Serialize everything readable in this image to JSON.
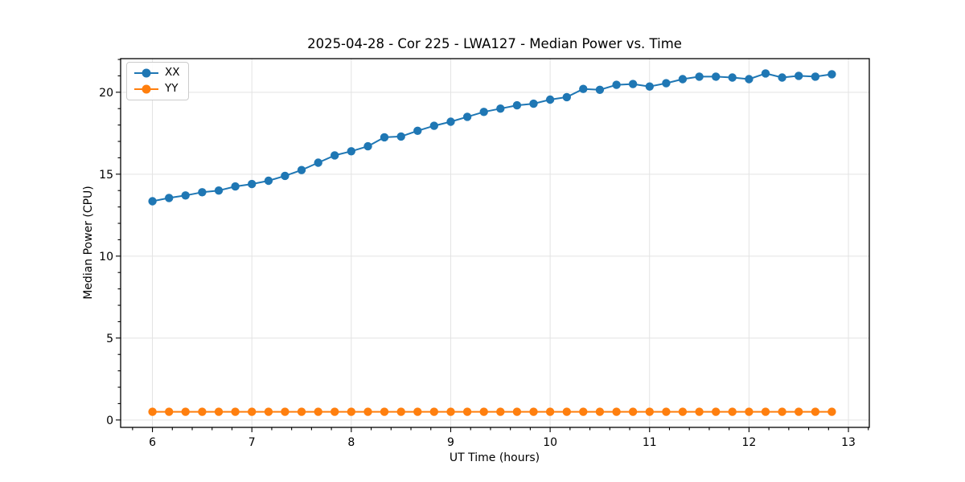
{
  "chart_data": {
    "type": "line",
    "title": "2025-04-28 - Cor 225 - LWA127 - Median Power vs. Time",
    "xlabel": "UT Time (hours)",
    "ylabel": "Median Power (CPU)",
    "xlim": [
      5.68,
      13.21
    ],
    "ylim": [
      -0.45,
      22.05
    ],
    "xticks": [
      6,
      7,
      8,
      9,
      10,
      11,
      12,
      13
    ],
    "yticks": [
      0,
      5,
      10,
      15,
      20
    ],
    "x_minor_step": 0.2,
    "y_minor_step": 1,
    "grid": true,
    "grid_color": "#e3e3e3",
    "spine_color": "#000000",
    "legend_position": "upper left",
    "x": [
      6.0,
      6.167,
      6.333,
      6.5,
      6.667,
      6.833,
      7.0,
      7.167,
      7.333,
      7.5,
      7.667,
      7.833,
      8.0,
      8.167,
      8.333,
      8.5,
      8.667,
      8.833,
      9.0,
      9.167,
      9.333,
      9.5,
      9.667,
      9.833,
      10.0,
      10.167,
      10.333,
      10.5,
      10.667,
      10.833,
      11.0,
      11.167,
      11.333,
      11.5,
      11.667,
      11.833,
      12.0,
      12.167,
      12.333,
      12.5,
      12.667,
      12.833
    ],
    "series": [
      {
        "name": "XX",
        "color": "#1f77b4",
        "values": [
          13.35,
          13.55,
          13.7,
          13.9,
          14.0,
          14.25,
          14.4,
          14.6,
          14.9,
          15.25,
          15.7,
          16.15,
          16.4,
          16.7,
          17.25,
          17.3,
          17.65,
          17.95,
          18.2,
          18.5,
          18.8,
          19.0,
          19.2,
          19.3,
          19.55,
          19.7,
          20.2,
          20.15,
          20.45,
          20.5,
          20.35,
          20.55,
          20.8,
          20.95,
          20.95,
          20.9,
          20.8,
          21.15,
          20.9,
          21.0,
          20.95,
          21.1
        ]
      },
      {
        "name": "YY",
        "color": "#ff7f0e",
        "values": [
          0.5,
          0.5,
          0.5,
          0.5,
          0.5,
          0.5,
          0.5,
          0.5,
          0.5,
          0.5,
          0.5,
          0.5,
          0.5,
          0.5,
          0.5,
          0.5,
          0.5,
          0.5,
          0.5,
          0.5,
          0.5,
          0.5,
          0.5,
          0.5,
          0.5,
          0.5,
          0.5,
          0.5,
          0.5,
          0.5,
          0.5,
          0.5,
          0.5,
          0.5,
          0.5,
          0.5,
          0.5,
          0.5,
          0.5,
          0.5,
          0.5,
          0.5
        ]
      }
    ]
  }
}
